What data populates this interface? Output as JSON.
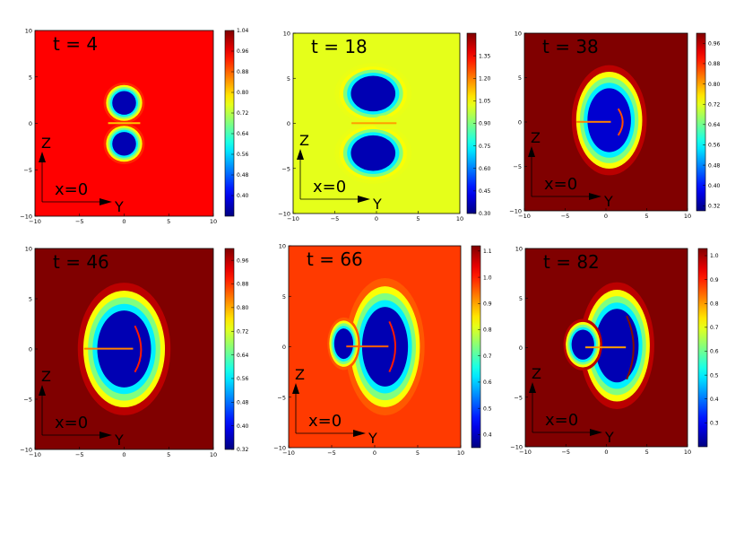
{
  "figure": {
    "colormap": "jet",
    "axis_label_horizontal": "Y",
    "axis_label_vertical": "Z",
    "slice_label": "x=0",
    "x_ticks": [
      -10,
      -5,
      0,
      5,
      10
    ],
    "y_ticks": [
      -10,
      -5,
      0,
      5,
      10
    ],
    "xlim": [
      -10,
      10
    ],
    "ylim": [
      -10,
      10
    ]
  },
  "chart_data": [
    {
      "type": "heatmap",
      "time_label": "t = 4",
      "xlim": [
        -10,
        10
      ],
      "ylim": [
        -10,
        10
      ],
      "x_tick_labels": [
        "−10",
        "−5",
        "0",
        "5",
        "10"
      ],
      "y_tick_labels": [
        "10",
        "5",
        "0",
        "−5",
        "−10"
      ],
      "colorbar_range": [
        0.32,
        1.04
      ],
      "colorbar_ticks": [
        "1.04",
        "0.96",
        "0.88",
        "0.80",
        "0.72",
        "0.64",
        "0.56",
        "0.48",
        "0.40"
      ],
      "background_value": 0.95,
      "min_value": 0.32
    },
    {
      "type": "heatmap",
      "time_label": "t = 18",
      "xlim": [
        -10,
        10
      ],
      "ylim": [
        -10,
        10
      ],
      "x_tick_labels": [
        "−10",
        "−5",
        "0",
        "5",
        "10"
      ],
      "y_tick_labels": [
        "10",
        "5",
        "0",
        "−5",
        "−10"
      ],
      "colorbar_range": [
        0.3,
        1.5
      ],
      "colorbar_ticks": [
        "1.35",
        "1.20",
        "1.05",
        "0.90",
        "0.75",
        "0.60",
        "0.45",
        "0.30"
      ],
      "background_value": 1.02,
      "min_value": 0.3
    },
    {
      "type": "heatmap",
      "time_label": "t = 38",
      "xlim": [
        -10,
        10
      ],
      "ylim": [
        -10,
        10
      ],
      "x_tick_labels": [
        "−10",
        "−5",
        "0",
        "5",
        "10"
      ],
      "y_tick_labels": [
        "10",
        "5",
        "0",
        "−5",
        "−10"
      ],
      "colorbar_range": [
        0.3,
        1.0
      ],
      "colorbar_ticks": [
        "0.96",
        "0.88",
        "0.80",
        "0.72",
        "0.64",
        "0.56",
        "0.48",
        "0.40",
        "0.32"
      ],
      "background_value": 1.0,
      "min_value": 0.32
    },
    {
      "type": "heatmap",
      "time_label": "t = 46",
      "xlim": [
        -10,
        10
      ],
      "ylim": [
        -10,
        10
      ],
      "x_tick_labels": [
        "−10",
        "−5",
        "0",
        "5",
        "10"
      ],
      "y_tick_labels": [
        "10",
        "5",
        "0",
        "−5",
        "−10"
      ],
      "colorbar_range": [
        0.32,
        1.0
      ],
      "colorbar_ticks": [
        "0.96",
        "0.88",
        "0.80",
        "0.72",
        "0.64",
        "0.56",
        "0.48",
        "0.40",
        "0.32"
      ],
      "background_value": 1.0,
      "min_value": 0.32
    },
    {
      "type": "heatmap",
      "time_label": "t = 66",
      "xlim": [
        -10,
        10
      ],
      "ylim": [
        -10,
        10
      ],
      "x_tick_labels": [
        "−10",
        "−5",
        "0",
        "5",
        "10"
      ],
      "y_tick_labels": [
        "10",
        "5",
        "0",
        "−5",
        "−10"
      ],
      "colorbar_range": [
        0.35,
        1.12
      ],
      "colorbar_ticks": [
        "1.1",
        "1.0",
        "0.9",
        "0.8",
        "0.7",
        "0.6",
        "0.5",
        "0.4"
      ],
      "background_value": 0.98,
      "min_value": 0.35
    },
    {
      "type": "heatmap",
      "time_label": "t = 82",
      "xlim": [
        -10,
        10
      ],
      "ylim": [
        -10,
        10
      ],
      "x_tick_labels": [
        "−10",
        "−5",
        "0",
        "5",
        "10"
      ],
      "y_tick_labels": [
        "10",
        "5",
        "0",
        "−5",
        "−10"
      ],
      "colorbar_range": [
        0.2,
        1.03
      ],
      "colorbar_ticks": [
        "1.0",
        "0.9",
        "0.8",
        "0.7",
        "0.6",
        "0.5",
        "0.4",
        "0.3"
      ],
      "background_value": 1.03,
      "min_value": 0.2
    }
  ]
}
